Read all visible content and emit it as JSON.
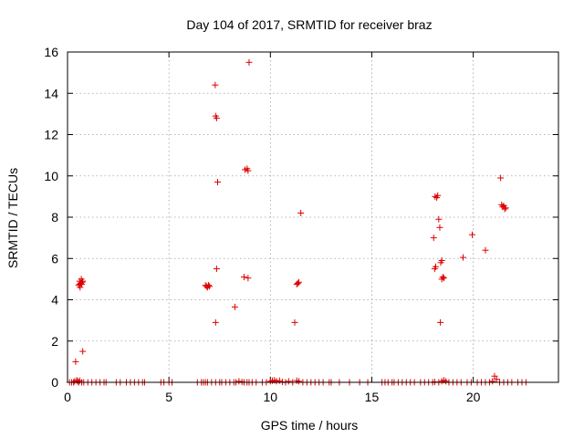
{
  "chart_data": {
    "type": "scatter",
    "title": "Day 104 of 2017, SRMTID for receiver braz",
    "xlabel": "GPS time / hours",
    "ylabel": "SRMTID / TECUs",
    "xlim": [
      0,
      24.2
    ],
    "ylim": [
      0,
      16
    ],
    "xticks": [
      0,
      5,
      10,
      15,
      20
    ],
    "yticks": [
      0,
      2,
      4,
      6,
      8,
      10,
      12,
      14,
      16
    ],
    "grid": true,
    "marker": "plus",
    "marker_color": "#e00000",
    "series": [
      {
        "name": "SRMTID",
        "points": [
          [
            0.1,
            0
          ],
          [
            0.2,
            0
          ],
          [
            0.3,
            0
          ],
          [
            0.35,
            0.05
          ],
          [
            0.45,
            0.1
          ],
          [
            0.5,
            0.05
          ],
          [
            0.55,
            0
          ],
          [
            0.6,
            0.08
          ],
          [
            0.7,
            0
          ],
          [
            0.8,
            0
          ],
          [
            1.0,
            0
          ],
          [
            1.2,
            0
          ],
          [
            1.4,
            0
          ],
          [
            1.6,
            0
          ],
          [
            1.8,
            0
          ],
          [
            1.9,
            0
          ],
          [
            2.4,
            0
          ],
          [
            2.6,
            0
          ],
          [
            2.9,
            0
          ],
          [
            3.1,
            0
          ],
          [
            3.3,
            0
          ],
          [
            3.5,
            0
          ],
          [
            3.7,
            0
          ],
          [
            3.8,
            0
          ],
          [
            4.6,
            0
          ],
          [
            4.75,
            0
          ],
          [
            5.0,
            0
          ],
          [
            5.15,
            0
          ],
          [
            6.4,
            0
          ],
          [
            6.6,
            0
          ],
          [
            6.7,
            0
          ],
          [
            6.8,
            0
          ],
          [
            6.9,
            0
          ],
          [
            7.1,
            0
          ],
          [
            7.3,
            0
          ],
          [
            7.5,
            0
          ],
          [
            7.6,
            0
          ],
          [
            7.8,
            0
          ],
          [
            8.0,
            0
          ],
          [
            8.2,
            0
          ],
          [
            8.3,
            0
          ],
          [
            8.45,
            0.05
          ],
          [
            8.6,
            0.02
          ],
          [
            8.7,
            0
          ],
          [
            8.85,
            0
          ],
          [
            8.95,
            0
          ],
          [
            9.1,
            0
          ],
          [
            9.3,
            0
          ],
          [
            9.6,
            0
          ],
          [
            9.8,
            0
          ],
          [
            10.0,
            0.05
          ],
          [
            10.1,
            0.08
          ],
          [
            10.2,
            0.1
          ],
          [
            10.3,
            0.05
          ],
          [
            10.45,
            0.08
          ],
          [
            10.6,
            0.02
          ],
          [
            10.75,
            0
          ],
          [
            10.9,
            0.05
          ],
          [
            11.1,
            0
          ],
          [
            11.3,
            0.08
          ],
          [
            11.4,
            0.05
          ],
          [
            11.6,
            0
          ],
          [
            11.8,
            0
          ],
          [
            12.0,
            0
          ],
          [
            12.2,
            0
          ],
          [
            12.4,
            0
          ],
          [
            12.6,
            0
          ],
          [
            12.9,
            0
          ],
          [
            13.0,
            0
          ],
          [
            13.4,
            0
          ],
          [
            13.9,
            0
          ],
          [
            14.4,
            0
          ],
          [
            14.8,
            0
          ],
          [
            15.5,
            0
          ],
          [
            15.65,
            0
          ],
          [
            15.8,
            0
          ],
          [
            16.0,
            0
          ],
          [
            16.1,
            0
          ],
          [
            16.3,
            0
          ],
          [
            16.5,
            0
          ],
          [
            16.7,
            0
          ],
          [
            16.9,
            0
          ],
          [
            17.1,
            0
          ],
          [
            17.4,
            0
          ],
          [
            17.6,
            0
          ],
          [
            17.8,
            0
          ],
          [
            18.0,
            0
          ],
          [
            18.1,
            0.02
          ],
          [
            18.3,
            0
          ],
          [
            18.45,
            0.05
          ],
          [
            18.55,
            0.1
          ],
          [
            18.65,
            0.05
          ],
          [
            18.8,
            0
          ],
          [
            19.0,
            0
          ],
          [
            19.2,
            0
          ],
          [
            19.4,
            0
          ],
          [
            19.7,
            0
          ],
          [
            19.9,
            0
          ],
          [
            20.2,
            0
          ],
          [
            20.4,
            0
          ],
          [
            20.6,
            0
          ],
          [
            20.8,
            0
          ],
          [
            20.95,
            0.05
          ],
          [
            21.05,
            0.3
          ],
          [
            21.15,
            0.15
          ],
          [
            21.3,
            0
          ],
          [
            21.5,
            0
          ],
          [
            21.7,
            0
          ],
          [
            21.9,
            0
          ],
          [
            22.2,
            0
          ],
          [
            22.4,
            0
          ],
          [
            22.6,
            0
          ],
          [
            0.4,
            1.0
          ],
          [
            0.75,
            1.5
          ],
          [
            0.55,
            4.7
          ],
          [
            0.6,
            4.9
          ],
          [
            0.62,
            4.6
          ],
          [
            0.65,
            4.8
          ],
          [
            0.68,
            5.0
          ],
          [
            0.7,
            4.75
          ],
          [
            0.72,
            4.85
          ],
          [
            0.75,
            4.9
          ],
          [
            0.6,
            4.75
          ],
          [
            6.8,
            4.7
          ],
          [
            6.85,
            4.65
          ],
          [
            6.9,
            4.6
          ],
          [
            6.95,
            4.7
          ],
          [
            7.0,
            4.65
          ],
          [
            7.3,
            2.9
          ],
          [
            7.35,
            5.5
          ],
          [
            7.4,
            9.7
          ],
          [
            7.3,
            12.9
          ],
          [
            7.35,
            12.8
          ],
          [
            7.28,
            14.4
          ],
          [
            8.25,
            3.65
          ],
          [
            8.7,
            5.1
          ],
          [
            8.9,
            5.05
          ],
          [
            8.75,
            10.3
          ],
          [
            8.85,
            10.35
          ],
          [
            8.9,
            10.25
          ],
          [
            8.95,
            15.5
          ],
          [
            11.2,
            2.9
          ],
          [
            11.3,
            4.75
          ],
          [
            11.35,
            4.8
          ],
          [
            11.4,
            4.85
          ],
          [
            11.5,
            8.2
          ],
          [
            18.05,
            7.0
          ],
          [
            18.1,
            5.5
          ],
          [
            18.15,
            5.6
          ],
          [
            18.12,
            9.0
          ],
          [
            18.2,
            8.95
          ],
          [
            18.25,
            9.05
          ],
          [
            18.3,
            7.9
          ],
          [
            18.35,
            7.5
          ],
          [
            18.4,
            5.8
          ],
          [
            18.45,
            5.9
          ],
          [
            18.38,
            2.9
          ],
          [
            18.45,
            5.0
          ],
          [
            18.5,
            5.1
          ],
          [
            18.55,
            5.05
          ],
          [
            19.5,
            6.05
          ],
          [
            19.95,
            7.15
          ],
          [
            20.6,
            6.4
          ],
          [
            21.35,
            9.9
          ],
          [
            21.4,
            8.6
          ],
          [
            21.45,
            8.5
          ],
          [
            21.5,
            8.55
          ],
          [
            21.55,
            8.4
          ],
          [
            21.6,
            8.45
          ]
        ]
      }
    ]
  }
}
